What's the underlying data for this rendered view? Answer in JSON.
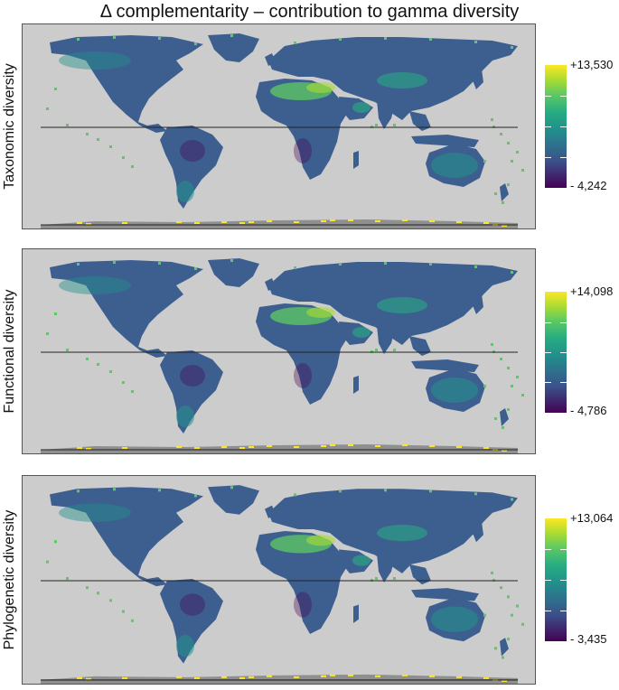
{
  "title": "Δ complementarity  –  contribution to gamma diversity",
  "colorscale": [
    "#440154",
    "#3b528b",
    "#21918c",
    "#27ad81",
    "#5ec962",
    "#aadc32",
    "#fde725"
  ],
  "land_color": "#3d5f8f",
  "background_color": "#cccccc",
  "panels": [
    {
      "label": "Taxonomic diversity",
      "max_label": "+13,530",
      "min_label": "- 4,242"
    },
    {
      "label": "Functional diversity",
      "max_label": "+14,098",
      "min_label": "- 4,786"
    },
    {
      "label": "Phylogenetic diversity",
      "max_label": "+13,064",
      "min_label": "- 3,435"
    }
  ]
}
